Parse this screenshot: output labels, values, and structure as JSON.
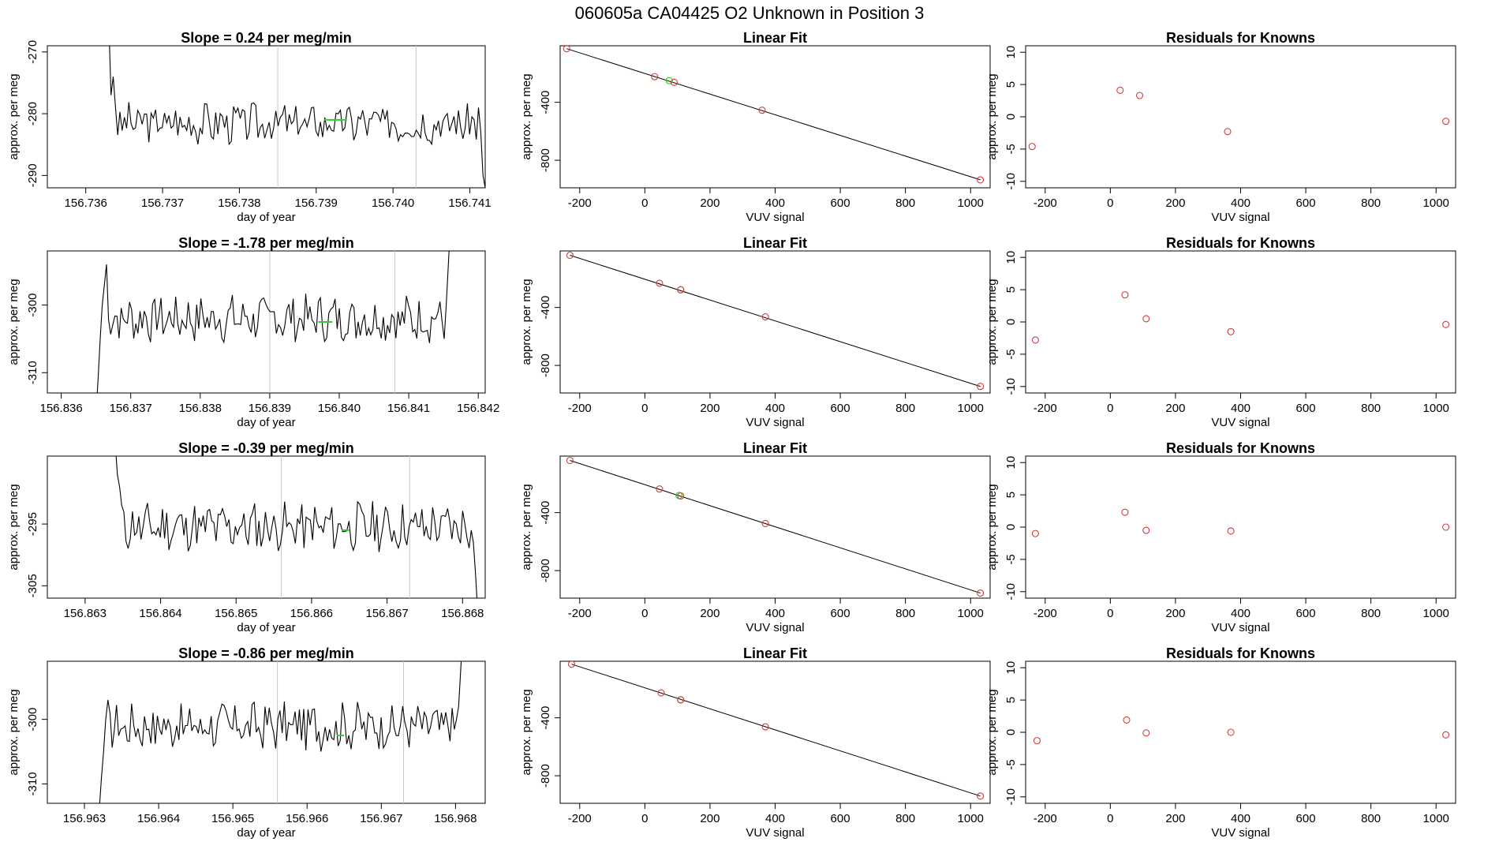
{
  "page_title": "060605a      CA04425    O2 Unknown in Position  3",
  "colors": {
    "line": "#000000",
    "unknown": "#2ecc2e",
    "known": "#d23b3b",
    "guide": "#c8c8c8"
  },
  "chart_data": [
    {
      "type": "line",
      "title": "Slope =  0.24  per meg/min",
      "xlabel": "day of year",
      "ylabel": "approx. per meg",
      "xlim": [
        156.7355,
        156.7412
      ],
      "ylim": [
        -292,
        -269
      ],
      "xticks": [
        156.736,
        156.737,
        156.738,
        156.739,
        156.74,
        156.741
      ],
      "xtick_labels": [
        "156.736",
        "156.737",
        "156.738",
        "156.739",
        "156.740",
        "156.741"
      ],
      "yticks": [
        -270,
        -280,
        -290
      ],
      "ytick_labels": [
        "-270",
        "-280",
        "-290"
      ],
      "vlines": [
        156.7385,
        156.7403
      ],
      "series": [
        {
          "name": "trace",
          "x_start": 156.7363,
          "x_end": 156.7412,
          "base": -281.5,
          "amplitude": 1.8,
          "seed": 3,
          "start_points": [
            -265,
            -277,
            -274,
            -279
          ],
          "end_points": [
            -279,
            -283,
            -290,
            -292
          ]
        }
      ],
      "unknown_mean": {
        "x1": 156.7391,
        "x2": 156.7394,
        "y": -281
      }
    },
    {
      "type": "scatter",
      "title": "Linear Fit",
      "xlabel": "VUV signal",
      "ylabel": "approx. per meg",
      "xlim": [
        -260,
        1060
      ],
      "ylim": [
        -990,
        -10
      ],
      "xticks": [
        -200,
        0,
        200,
        400,
        600,
        800,
        1000
      ],
      "xtick_labels": [
        "-200",
        "0",
        "200",
        "400",
        "600",
        "800",
        "1000"
      ],
      "yticks": [
        -400,
        -800
      ],
      "ytick_labels": [
        "-400",
        "-800"
      ],
      "fit_line": [
        [
          -240,
          -30
        ],
        [
          1030,
          -935
        ]
      ],
      "known_points": [
        [
          -240,
          -30
        ],
        [
          30,
          -223
        ],
        [
          90,
          -262
        ],
        [
          360,
          -455
        ],
        [
          1030,
          -935
        ]
      ],
      "unknown_points": [
        [
          75,
          -250
        ]
      ]
    },
    {
      "type": "scatter",
      "title": "Residuals for Knowns",
      "xlabel": "VUV signal",
      "ylabel": "approx. per meg",
      "xlim": [
        -260,
        1060
      ],
      "ylim": [
        -11,
        11
      ],
      "xticks": [
        -200,
        0,
        200,
        400,
        600,
        800,
        1000
      ],
      "xtick_labels": [
        "-200",
        "0",
        "200",
        "400",
        "600",
        "800",
        "1000"
      ],
      "yticks": [
        10,
        5,
        0,
        -5,
        -10
      ],
      "ytick_labels": [
        "10",
        "5",
        "0",
        "-5",
        "-10"
      ],
      "points": [
        [
          -240,
          -4.6
        ],
        [
          30,
          4.1
        ],
        [
          90,
          3.3
        ],
        [
          360,
          -2.3
        ],
        [
          1030,
          -0.7
        ]
      ]
    },
    {
      "type": "line",
      "title": "Slope =  -1.78  per meg/min",
      "xlabel": "day of year",
      "ylabel": "approx. per meg",
      "xlim": [
        156.8358,
        156.8421
      ],
      "ylim": [
        -313,
        -292
      ],
      "xticks": [
        156.836,
        156.837,
        156.838,
        156.839,
        156.84,
        156.841,
        156.842
      ],
      "xtick_labels": [
        "156.836",
        "156.837",
        "156.838",
        "156.839",
        "156.840",
        "156.841",
        "156.842"
      ],
      "yticks": [
        -300,
        -310
      ],
      "ytick_labels": [
        "-300",
        "-310"
      ],
      "vlines": [
        156.839,
        156.8408
      ],
      "series": [
        {
          "name": "trace",
          "x_start": 156.8365,
          "x_end": 156.8416,
          "base": -302,
          "amplitude": 1.9,
          "seed": 7,
          "start_points": [
            -316,
            -311,
            -305,
            -300,
            -297,
            -294
          ],
          "end_points": [
            -305,
            -300,
            -294,
            -288
          ]
        }
      ],
      "unknown_mean": {
        "x1": 156.8397,
        "x2": 156.8399,
        "y": -302.5
      }
    },
    {
      "type": "scatter",
      "title": "Linear Fit",
      "xlabel": "VUV signal",
      "ylabel": "approx. per meg",
      "xlim": [
        -260,
        1060
      ],
      "ylim": [
        -990,
        -10
      ],
      "xticks": [
        -200,
        0,
        200,
        400,
        600,
        800,
        1000
      ],
      "xtick_labels": [
        "-200",
        "0",
        "200",
        "400",
        "600",
        "800",
        "1000"
      ],
      "yticks": [
        -400,
        -800
      ],
      "ytick_labels": [
        "-400",
        "-800"
      ],
      "fit_line": [
        [
          -230,
          -40
        ],
        [
          1030,
          -945
        ]
      ],
      "known_points": [
        [
          -230,
          -40
        ],
        [
          45,
          -233
        ],
        [
          110,
          -278
        ],
        [
          370,
          -465
        ],
        [
          1030,
          -945
        ]
      ],
      "unknown_points": [
        [
          110,
          -278
        ]
      ]
    },
    {
      "type": "scatter",
      "title": "Residuals for Knowns",
      "xlabel": "VUV signal",
      "ylabel": "approx. per meg",
      "xlim": [
        -260,
        1060
      ],
      "ylim": [
        -11,
        11
      ],
      "xticks": [
        -200,
        0,
        200,
        400,
        600,
        800,
        1000
      ],
      "xtick_labels": [
        "-200",
        "0",
        "200",
        "400",
        "600",
        "800",
        "1000"
      ],
      "yticks": [
        10,
        5,
        0,
        -5,
        -10
      ],
      "ytick_labels": [
        "10",
        "5",
        "0",
        "-5",
        "-10"
      ],
      "points": [
        [
          -230,
          -2.8
        ],
        [
          45,
          4.2
        ],
        [
          110,
          0.5
        ],
        [
          370,
          -1.5
        ],
        [
          1030,
          -0.4
        ]
      ]
    },
    {
      "type": "line",
      "title": "Slope =  -0.39  per meg/min",
      "xlabel": "day of year",
      "ylabel": "approx. per meg",
      "xlim": [
        156.8625,
        156.8683
      ],
      "ylim": [
        -307,
        -284
      ],
      "xticks": [
        156.863,
        156.864,
        156.865,
        156.866,
        156.867,
        156.868
      ],
      "xtick_labels": [
        "156.863",
        "156.864",
        "156.865",
        "156.866",
        "156.867",
        "156.868"
      ],
      "yticks": [
        -295,
        -305
      ],
      "ytick_labels": [
        "-295",
        "-305"
      ],
      "vlines": [
        156.8656,
        156.8673
      ],
      "series": [
        {
          "name": "trace",
          "x_start": 156.8634,
          "x_end": 156.8682,
          "base": -295.5,
          "amplitude": 2.2,
          "seed": 11,
          "start_points": [
            -282,
            -287,
            -289,
            -292
          ],
          "end_points": [
            -296,
            -298,
            -303,
            -309
          ]
        }
      ],
      "unknown_mean": {
        "x1": 156.8664,
        "x2": 156.8665,
        "y": -296
      }
    },
    {
      "type": "scatter",
      "title": "Linear Fit",
      "xlabel": "VUV signal",
      "ylabel": "approx. per meg",
      "xlim": [
        -260,
        1060
      ],
      "ylim": [
        -990,
        -10
      ],
      "xticks": [
        -200,
        0,
        200,
        400,
        600,
        800,
        1000
      ],
      "xtick_labels": [
        "-200",
        "0",
        "200",
        "400",
        "600",
        "800",
        "1000"
      ],
      "yticks": [
        -400,
        -800
      ],
      "ytick_labels": [
        "-400",
        "-800"
      ],
      "fit_line": [
        [
          -230,
          -40
        ],
        [
          1030,
          -955
        ]
      ],
      "known_points": [
        [
          -230,
          -40
        ],
        [
          45,
          -237
        ],
        [
          110,
          -285
        ],
        [
          370,
          -475
        ],
        [
          1030,
          -955
        ]
      ],
      "unknown_points": [
        [
          105,
          -282
        ]
      ]
    },
    {
      "type": "scatter",
      "title": "Residuals for Knowns",
      "xlabel": "VUV signal",
      "ylabel": "approx. per meg",
      "xlim": [
        -260,
        1060
      ],
      "ylim": [
        -11,
        11
      ],
      "xticks": [
        -200,
        0,
        200,
        400,
        600,
        800,
        1000
      ],
      "xtick_labels": [
        "-200",
        "0",
        "200",
        "400",
        "600",
        "800",
        "1000"
      ],
      "yticks": [
        10,
        5,
        0,
        -5,
        -10
      ],
      "ytick_labels": [
        "10",
        "5",
        "0",
        "-5",
        "-10"
      ],
      "points": [
        [
          -230,
          -1.0
        ],
        [
          45,
          2.3
        ],
        [
          110,
          -0.5
        ],
        [
          370,
          -0.6
        ],
        [
          1030,
          0.0
        ]
      ]
    },
    {
      "type": "line",
      "title": "Slope =  -0.86  per meg/min",
      "xlabel": "day of year",
      "ylabel": "approx. per meg",
      "xlim": [
        156.9625,
        156.9684
      ],
      "ylim": [
        -313,
        -291
      ],
      "xticks": [
        156.963,
        156.964,
        156.965,
        156.966,
        156.967,
        156.968
      ],
      "xtick_labels": [
        "156.963",
        "156.964",
        "156.965",
        "156.966",
        "156.967",
        "156.968"
      ],
      "yticks": [
        -300,
        -310
      ],
      "ytick_labels": [
        "-300",
        "-310"
      ],
      "vlines": [
        156.9656,
        156.9673
      ],
      "series": [
        {
          "name": "trace",
          "x_start": 156.9632,
          "x_end": 156.9681,
          "base": -301,
          "amplitude": 2.0,
          "seed": 17,
          "start_points": [
            -314,
            -309,
            -305,
            -300,
            -297
          ],
          "end_points": [
            -300,
            -298,
            -292,
            -286
          ]
        }
      ],
      "unknown_mean": {
        "x1": 156.9664,
        "x2": 156.9665,
        "y": -302.5
      }
    },
    {
      "type": "scatter",
      "title": "Linear Fit",
      "xlabel": "VUV signal",
      "ylabel": "approx. per meg",
      "xlim": [
        -260,
        1060
      ],
      "ylim": [
        -990,
        -10
      ],
      "xticks": [
        -200,
        0,
        200,
        400,
        600,
        800,
        1000
      ],
      "xtick_labels": [
        "-200",
        "0",
        "200",
        "400",
        "600",
        "800",
        "1000"
      ],
      "yticks": [
        -400,
        -800
      ],
      "ytick_labels": [
        "-400",
        "-800"
      ],
      "fit_line": [
        [
          -225,
          -30
        ],
        [
          1030,
          -940
        ]
      ],
      "known_points": [
        [
          -225,
          -30
        ],
        [
          50,
          -228
        ],
        [
          110,
          -276
        ],
        [
          370,
          -462
        ],
        [
          1030,
          -940
        ]
      ],
      "unknown_points": [
        [
          110,
          -276
        ]
      ]
    },
    {
      "type": "scatter",
      "title": "Residuals for Knowns",
      "xlabel": "VUV signal",
      "ylabel": "approx. per meg",
      "xlim": [
        -260,
        1060
      ],
      "ylim": [
        -11,
        11
      ],
      "xticks": [
        -200,
        0,
        200,
        400,
        600,
        800,
        1000
      ],
      "xtick_labels": [
        "-200",
        "0",
        "200",
        "400",
        "600",
        "800",
        "1000"
      ],
      "yticks": [
        10,
        5,
        0,
        -5,
        -10
      ],
      "ytick_labels": [
        "10",
        "5",
        "0",
        "-5",
        "-10"
      ],
      "points": [
        [
          -225,
          -1.3
        ],
        [
          50,
          1.9
        ],
        [
          110,
          -0.1
        ],
        [
          370,
          0.0
        ],
        [
          1030,
          -0.4
        ]
      ]
    }
  ]
}
